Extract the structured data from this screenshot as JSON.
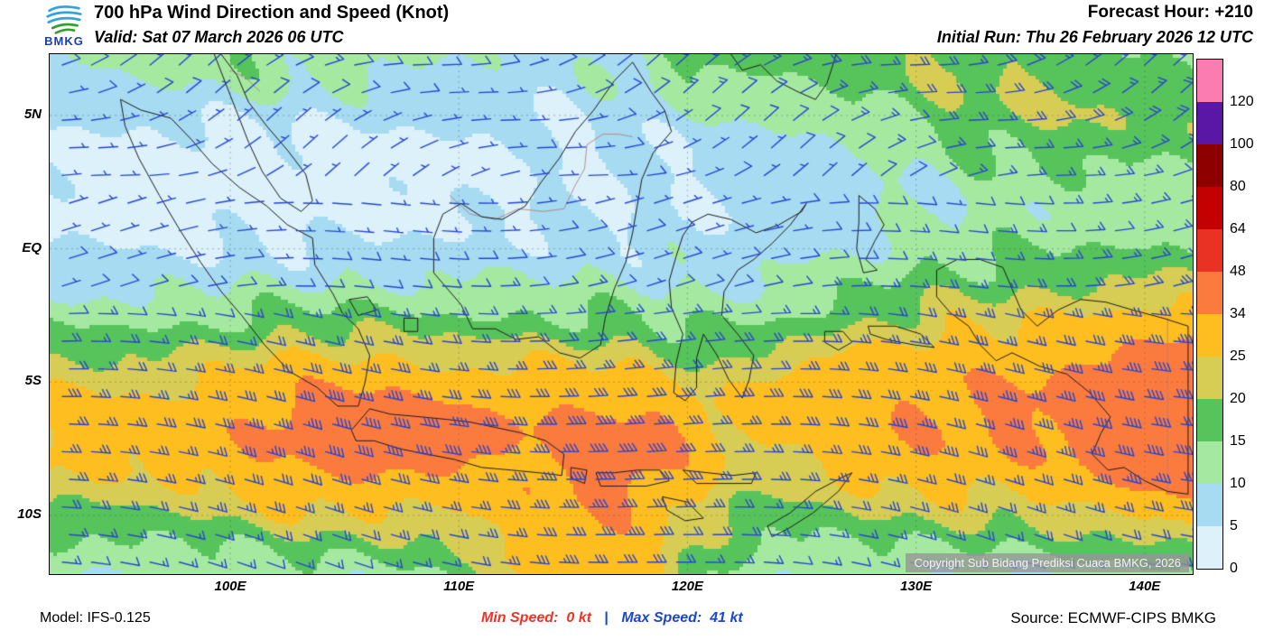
{
  "header": {
    "logo_text": "BMKG",
    "title": "700 hPa Wind Direction and Speed (Knot)",
    "valid": "Valid: Sat 07 March 2026 06 UTC",
    "forecast_hour": "Forecast Hour: +210",
    "initial_run": "Initial Run: Thu 26 February 2026 12 UTC"
  },
  "map": {
    "lat_ticks": [
      {
        "label": "5N",
        "lat": 5
      },
      {
        "label": "EQ",
        "lat": 0
      },
      {
        "label": "5S",
        "lat": -5
      },
      {
        "label": "10S",
        "lat": -10
      }
    ],
    "lon_ticks": [
      {
        "label": "100E",
        "lon": 100
      },
      {
        "label": "110E",
        "lon": 110
      },
      {
        "label": "120E",
        "lon": 120
      },
      {
        "label": "130E",
        "lon": 130
      },
      {
        "label": "140E",
        "lon": 140
      }
    ],
    "lon_range": [
      92.1,
      142.1
    ],
    "lat_range": [
      7.3,
      -12.2
    ],
    "copyright": "Copyright Sub Bidang Prediksi Cuaca BMKG, 2026",
    "barb_color": "#2745cf",
    "coast_color": "#1b1b1b",
    "border_color": "rgba(175,125,125,0.85)",
    "grid_color": "rgba(60,60,60,0.35)"
  },
  "legend": {
    "entries": [
      {
        "label": "120",
        "color": "#fa7cb0"
      },
      {
        "label": "100",
        "color": "#5a17a5"
      },
      {
        "label": "80",
        "color": "#8e0000"
      },
      {
        "label": "64",
        "color": "#c30101"
      },
      {
        "label": "48",
        "color": "#e93223"
      },
      {
        "label": "34",
        "color": "#fb7b3f"
      },
      {
        "label": "25",
        "color": "#febe20"
      },
      {
        "label": "20",
        "color": "#d7cd55"
      },
      {
        "label": "15",
        "color": "#57c35b"
      },
      {
        "label": "10",
        "color": "#a5e9a1"
      },
      {
        "label": "5",
        "color": "#a6dbf2"
      },
      {
        "label": "0",
        "color": "#dcf1fa"
      }
    ]
  },
  "footer": {
    "model": "Model: IFS-0.125",
    "min_label": "Min Speed:",
    "min_value": "0 kt",
    "divider": "|",
    "max_label": "Max Speed:",
    "max_value": "41 kt",
    "source": "Source: ECMWF-CIPS BMKG",
    "min_color": "#f03224",
    "max_color": "#1947d1"
  },
  "chart_data": {
    "type": "heatmap",
    "title": "700 hPa Wind Direction and Speed (Knot)",
    "valid_time": "Sat 07 March 2026 06 UTC",
    "initial_run": "Thu 26 February 2026 12 UTC",
    "forecast_hour": "+210",
    "model": "IFS-0.125",
    "source": "ECMWF-CIPS BMKG",
    "min_speed_kt": 0,
    "max_speed_kt": 41,
    "speed_bins_kt": [
      0,
      5,
      10,
      15,
      20,
      25,
      34,
      48,
      64,
      80,
      100,
      120
    ],
    "lon_ticks_deg_e": [
      100,
      110,
      120,
      130,
      140
    ],
    "lat_ticks": [
      "5N",
      "EQ",
      "5S",
      "10S"
    ],
    "field_summary": [
      {
        "region": "north of equator (Sumatra, Borneo, southern Philippines seas)",
        "speed_kt": "0-15",
        "direction": "light easterly-northeasterly"
      },
      {
        "region": "equatorial band 95E-125E",
        "speed_kt": "5-15",
        "direction": "easterly"
      },
      {
        "region": "belt 3S-9S across Java to Banda Sea",
        "speed_kt": "25-41",
        "direction": "easterly (strongest belt, orange patches over Java)"
      },
      {
        "region": "south of 10S, south of Java",
        "speed_kt": "20-40",
        "direction": "east-southeasterly"
      },
      {
        "region": "eastern sector 127E-142E up to equator",
        "speed_kt": "20-34",
        "direction": "easterly"
      }
    ]
  }
}
